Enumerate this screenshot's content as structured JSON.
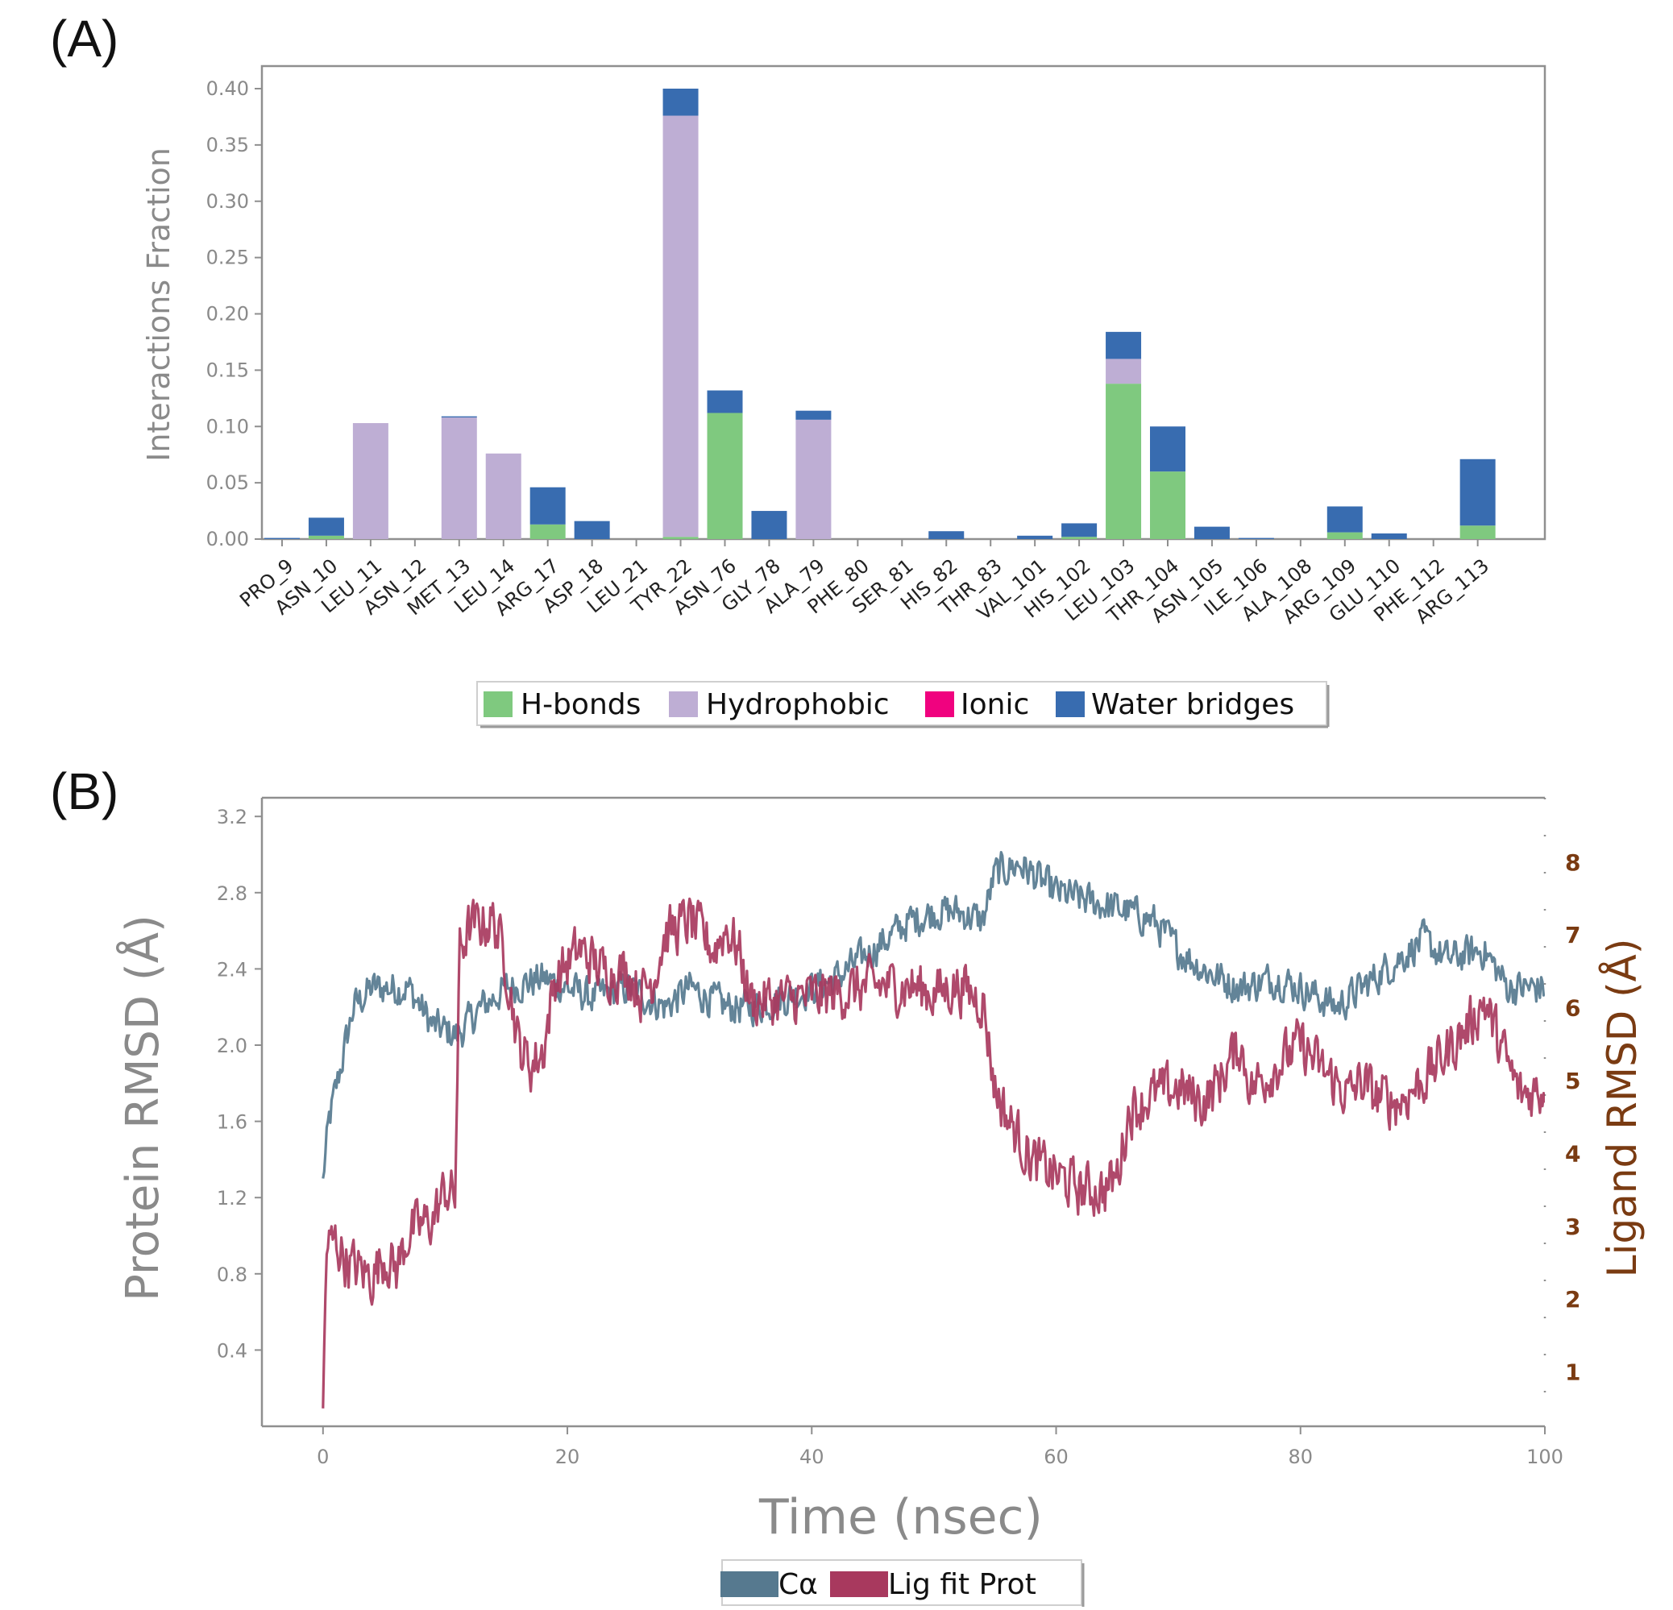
{
  "colors": {
    "hbonds": "#7fc97f",
    "hydrophobic": "#beaed4",
    "ionic": "#f0027f",
    "water": "#386cb0",
    "ca": "#56798f",
    "lig": "#a8395e",
    "right_axis": "#7a3b12",
    "axis": "#888888"
  },
  "panel_a": {
    "label": "(A)"
  },
  "panel_b": {
    "label": "(B)"
  },
  "chart_data": [
    {
      "type": "bar",
      "stacked": true,
      "ylabel": "Interactions Fraction",
      "ylim": [
        0,
        0.4
      ],
      "yticks": [
        "0.00",
        "0.05",
        "0.10",
        "0.15",
        "0.20",
        "0.25",
        "0.30",
        "0.35",
        "0.40"
      ],
      "categories": [
        "PRO_9",
        "ASN_10",
        "LEU_11",
        "ASN_12",
        "MET_13",
        "LEU_14",
        "ARG_17",
        "ASP_18",
        "LEU_21",
        "TYR_22",
        "ASN_76",
        "GLY_78",
        "ALA_79",
        "PHE_80",
        "SER_81",
        "HIS_82",
        "THR_83",
        "VAL_101",
        "HIS_102",
        "LEU_103",
        "THR_104",
        "ASN_105",
        "ILE_106",
        "ALA_108",
        "ARG_109",
        "GLU_110",
        "PHE_112",
        "ARG_113"
      ],
      "series": [
        {
          "name": "H-bonds",
          "key": "hbonds",
          "values": [
            0,
            0.003,
            0,
            0,
            0,
            0,
            0.013,
            0,
            0,
            0.002,
            0.112,
            0,
            0,
            0,
            0,
            0,
            0,
            0,
            0.002,
            0.138,
            0.06,
            0,
            0,
            0,
            0.006,
            0,
            0,
            0.012
          ]
        },
        {
          "name": "Hydrophobic",
          "key": "hydrophobic",
          "values": [
            0,
            0,
            0.103,
            0,
            0.108,
            0.076,
            0,
            0,
            0,
            0.374,
            0,
            0,
            0.106,
            0,
            0,
            0,
            0,
            0,
            0,
            0.022,
            0,
            0,
            0,
            0,
            0,
            0,
            0,
            0
          ]
        },
        {
          "name": "Ionic",
          "key": "ionic",
          "values": [
            0,
            0,
            0,
            0,
            0,
            0,
            0,
            0,
            0,
            0,
            0,
            0,
            0,
            0,
            0,
            0,
            0,
            0,
            0,
            0,
            0,
            0,
            0,
            0,
            0,
            0,
            0,
            0
          ]
        },
        {
          "name": "Water bridges",
          "key": "water",
          "values": [
            0.001,
            0.016,
            0,
            0,
            0.001,
            0,
            0.033,
            0.016,
            0,
            0.024,
            0.02,
            0.025,
            0.008,
            0,
            0,
            0.007,
            0,
            0.003,
            0.012,
            0.024,
            0.04,
            0.011,
            0.001,
            0,
            0.023,
            0.005,
            0,
            0.059
          ]
        }
      ],
      "legend": [
        "H-bonds",
        "Hydrophobic",
        "Ionic",
        "Water bridges"
      ],
      "legend_position": "bottom-center"
    },
    {
      "type": "line",
      "xlabel": "Time (nsec)",
      "ylabel_left": "Protein RMSD (Å)",
      "ylabel_right": "Ligand RMSD (Å)",
      "xlim": [
        -5,
        100
      ],
      "xticks": [
        "0",
        "20",
        "40",
        "60",
        "80",
        "100"
      ],
      "ylim_left": [
        0,
        3.2
      ],
      "yticks_left": [
        "0.4",
        "0.8",
        "1.2",
        "1.6",
        "2.0",
        "2.4",
        "2.8",
        "3.2"
      ],
      "yticks_right": [
        "1",
        "2",
        "3",
        "4",
        "5",
        "6",
        "7",
        "8"
      ],
      "legend": [
        "Cα",
        "Lig fit Prot"
      ],
      "legend_position": "bottom-center",
      "series": [
        {
          "name": "Cα",
          "axis": "left",
          "noise": 0.14,
          "points": [
            [
              0,
              1.3
            ],
            [
              0.5,
              1.6
            ],
            [
              1.5,
              1.9
            ],
            [
              2.5,
              2.2
            ],
            [
              4,
              2.3
            ],
            [
              7,
              2.3
            ],
            [
              8,
              2.2
            ],
            [
              9,
              2.1
            ],
            [
              11,
              2.05
            ],
            [
              13,
              2.2
            ],
            [
              15,
              2.3
            ],
            [
              18,
              2.35
            ],
            [
              20,
              2.3
            ],
            [
              22,
              2.25
            ],
            [
              25,
              2.3
            ],
            [
              28,
              2.2
            ],
            [
              30,
              2.3
            ],
            [
              33,
              2.2
            ],
            [
              35,
              2.2
            ],
            [
              38,
              2.25
            ],
            [
              42,
              2.35
            ],
            [
              45,
              2.5
            ],
            [
              48,
              2.65
            ],
            [
              50,
              2.7
            ],
            [
              52,
              2.7
            ],
            [
              54,
              2.65
            ],
            [
              55,
              2.9
            ],
            [
              57,
              2.95
            ],
            [
              60,
              2.8
            ],
            [
              63,
              2.75
            ],
            [
              66,
              2.7
            ],
            [
              68,
              2.65
            ],
            [
              70,
              2.5
            ],
            [
              72,
              2.4
            ],
            [
              75,
              2.3
            ],
            [
              78,
              2.35
            ],
            [
              80,
              2.3
            ],
            [
              83,
              2.2
            ],
            [
              85,
              2.3
            ],
            [
              88,
              2.45
            ],
            [
              90,
              2.55
            ],
            [
              92,
              2.45
            ],
            [
              95,
              2.5
            ],
            [
              97,
              2.3
            ],
            [
              100,
              2.3
            ]
          ]
        },
        {
          "name": "Lig fit Prot",
          "axis": "right",
          "noise": 0.55,
          "points": [
            [
              0,
              0.5
            ],
            [
              0.3,
              2.7
            ],
            [
              1,
              2.8
            ],
            [
              2,
              2.5
            ],
            [
              3,
              2.4
            ],
            [
              4,
              2.3
            ],
            [
              5,
              2.6
            ],
            [
              6,
              2.4
            ],
            [
              7,
              2.9
            ],
            [
              9,
              3.1
            ],
            [
              10,
              3.5
            ],
            [
              10.8,
              3.4
            ],
            [
              11.2,
              6.8
            ],
            [
              12,
              7.1
            ],
            [
              14,
              7.2
            ],
            [
              15,
              6.6
            ],
            [
              16,
              5.5
            ],
            [
              17,
              5.2
            ],
            [
              18,
              5.4
            ],
            [
              19,
              6.4
            ],
            [
              21,
              6.8
            ],
            [
              23,
              6.5
            ],
            [
              25,
              6.5
            ],
            [
              26,
              6.2
            ],
            [
              27,
              6.4
            ],
            [
              28,
              7.0
            ],
            [
              30,
              7.2
            ],
            [
              32,
              6.8
            ],
            [
              33,
              7.1
            ],
            [
              34,
              6.8
            ],
            [
              35,
              6.1
            ],
            [
              38,
              6.1
            ],
            [
              42,
              6.2
            ],
            [
              45,
              6.3
            ],
            [
              48,
              6.3
            ],
            [
              50,
              6.2
            ],
            [
              52,
              6.3
            ],
            [
              54,
              6.1
            ],
            [
              55,
              4.9
            ],
            [
              56,
              4.5
            ],
            [
              57,
              4.2
            ],
            [
              58,
              3.9
            ],
            [
              60,
              3.7
            ],
            [
              62,
              3.5
            ],
            [
              64,
              3.5
            ],
            [
              65,
              3.7
            ],
            [
              66,
              4.6
            ],
            [
              68,
              4.8
            ],
            [
              70,
              4.9
            ],
            [
              72,
              4.7
            ],
            [
              73,
              4.9
            ],
            [
              75,
              5.5
            ],
            [
              76,
              4.9
            ],
            [
              78,
              5.2
            ],
            [
              80,
              5.5
            ],
            [
              82,
              5.1
            ],
            [
              84,
              4.8
            ],
            [
              85,
              5.0
            ],
            [
              86,
              4.8
            ],
            [
              88,
              4.7
            ],
            [
              90,
              5.0
            ],
            [
              92,
              5.4
            ],
            [
              94,
              5.8
            ],
            [
              95,
              6.1
            ],
            [
              97,
              5.2
            ],
            [
              98,
              4.8
            ],
            [
              100,
              4.9
            ]
          ]
        }
      ]
    }
  ]
}
